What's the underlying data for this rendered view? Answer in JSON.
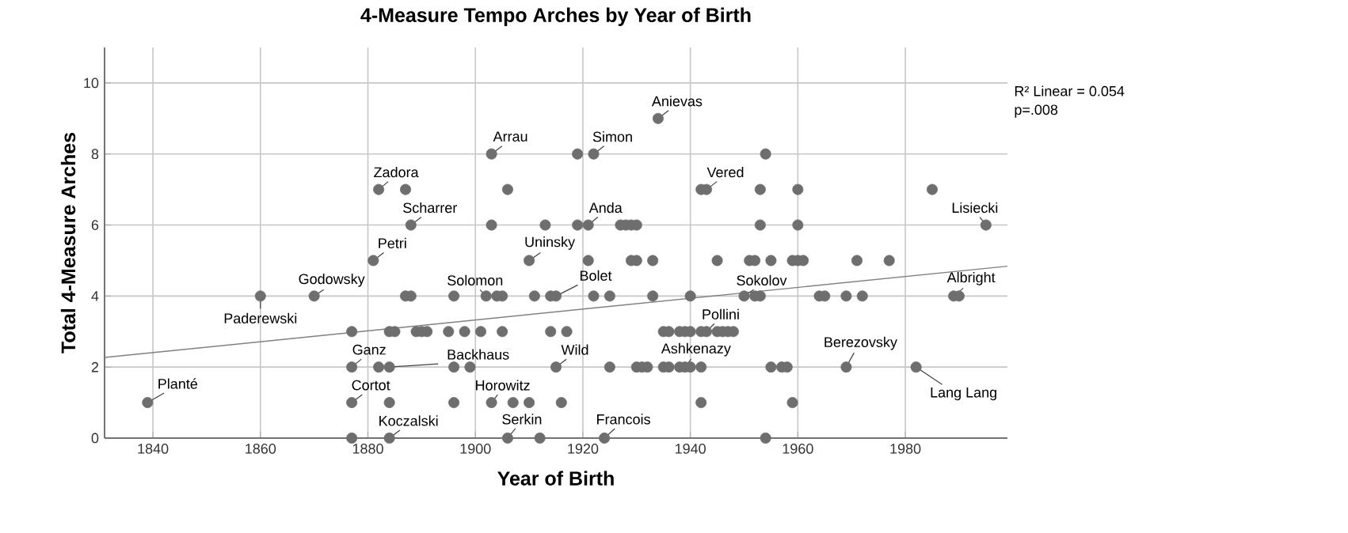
{
  "chart_data": {
    "type": "scatter",
    "title": "4-Measure Tempo Arches by Year of Birth",
    "xlabel": "Year of Birth",
    "ylabel": "Total 4-Measure Arches",
    "xlim": [
      1831,
      1999
    ],
    "ylim": [
      0,
      11
    ],
    "xticks": [
      1840,
      1860,
      1880,
      1900,
      1920,
      1940,
      1960,
      1980
    ],
    "yticks": [
      0,
      2,
      4,
      6,
      8,
      10
    ],
    "grid": true,
    "marker": "circle",
    "series": [
      {
        "color": "#6e6e6e",
        "x": [
          1934,
          1903,
          1919,
          1922,
          1954,
          1882,
          1887,
          1906,
          1942,
          1943,
          1953,
          1960,
          1985,
          1888,
          1903,
          1913,
          1919,
          1921,
          1927,
          1928,
          1929,
          1930,
          1953,
          1960,
          1995,
          1881,
          1910,
          1921,
          1929,
          1930,
          1933,
          1945,
          1951,
          1952,
          1955,
          1959,
          1960,
          1961,
          1971,
          1977,
          1860,
          1870,
          1887,
          1888,
          1896,
          1902,
          1904,
          1905,
          1911,
          1914,
          1915,
          1922,
          1925,
          1933,
          1940,
          1950,
          1952,
          1953,
          1964,
          1965,
          1969,
          1972,
          1989,
          1990,
          1877,
          1884,
          1885,
          1889,
          1890,
          1891,
          1895,
          1898,
          1901,
          1905,
          1914,
          1917,
          1935,
          1936,
          1938,
          1939,
          1940,
          1942,
          1943,
          1945,
          1946,
          1947,
          1948,
          1877,
          1882,
          1884,
          1896,
          1899,
          1915,
          1925,
          1930,
          1931,
          1932,
          1935,
          1936,
          1938,
          1939,
          1940,
          1942,
          1955,
          1957,
          1958,
          1969,
          1982,
          1839,
          1877,
          1884,
          1896,
          1903,
          1907,
          1910,
          1916,
          1942,
          1959,
          1877,
          1884,
          1906,
          1912,
          1924,
          1954
        ],
        "values": [
          9,
          8,
          8,
          8,
          8,
          7,
          7,
          7,
          7,
          7,
          7,
          7,
          7,
          6,
          6,
          6,
          6,
          6,
          6,
          6,
          6,
          6,
          6,
          6,
          6,
          5,
          5,
          5,
          5,
          5,
          5,
          5,
          5,
          5,
          5,
          5,
          5,
          5,
          5,
          5,
          4,
          4,
          4,
          4,
          4,
          4,
          4,
          4,
          4,
          4,
          4,
          4,
          4,
          4,
          4,
          4,
          4,
          4,
          4,
          4,
          4,
          4,
          4,
          4,
          3,
          3,
          3,
          3,
          3,
          3,
          3,
          3,
          3,
          3,
          3,
          3,
          3,
          3,
          3,
          3,
          3,
          3,
          3,
          3,
          3,
          3,
          3,
          2,
          2,
          2,
          2,
          2,
          2,
          2,
          2,
          2,
          2,
          2,
          2,
          2,
          2,
          2,
          2,
          2,
          2,
          2,
          2,
          2,
          1,
          1,
          1,
          1,
          1,
          1,
          1,
          1,
          1,
          1,
          0,
          0,
          0,
          0,
          0,
          0
        ]
      },
      {
        "type": "line",
        "color": "#808080",
        "line_style": "solid",
        "marker": "none",
        "x": [
          1831,
          1999
        ],
        "values": [
          2.27,
          4.84
        ]
      }
    ],
    "annotations": [
      {
        "text": "Planté",
        "x": 1839,
        "y": 1
      },
      {
        "text": "Paderewski",
        "x": 1860,
        "y": 4
      },
      {
        "text": "Godowsky",
        "x": 1870,
        "y": 4
      },
      {
        "text": "Petri",
        "x": 1881,
        "y": 5
      },
      {
        "text": "Zadora",
        "x": 1882,
        "y": 7
      },
      {
        "text": "Scharrer",
        "x": 1888,
        "y": 6
      },
      {
        "text": "Arrau",
        "x": 1903,
        "y": 8
      },
      {
        "text": "Solomon",
        "x": 1902,
        "y": 4
      },
      {
        "text": "Uninsky",
        "x": 1910,
        "y": 5
      },
      {
        "text": "Ganz",
        "x": 1877,
        "y": 2
      },
      {
        "text": "Backhaus",
        "x": 1884,
        "y": 2
      },
      {
        "text": "Cortot",
        "x": 1877,
        "y": 1
      },
      {
        "text": "Horowitz",
        "x": 1903,
        "y": 1
      },
      {
        "text": "Koczalski",
        "x": 1884,
        "y": 0
      },
      {
        "text": "Serkin",
        "x": 1906,
        "y": 0
      },
      {
        "text": "Anievas",
        "x": 1934,
        "y": 9
      },
      {
        "text": "Simon",
        "x": 1922,
        "y": 8
      },
      {
        "text": "Anda",
        "x": 1921,
        "y": 6
      },
      {
        "text": "Bolet",
        "x": 1915,
        "y": 4
      },
      {
        "text": "Wild",
        "x": 1915,
        "y": 2
      },
      {
        "text": "Francois",
        "x": 1924,
        "y": 0
      },
      {
        "text": "Vered",
        "x": 1943,
        "y": 7
      },
      {
        "text": "Pollini",
        "x": 1943,
        "y": 3
      },
      {
        "text": "Ashkenazy",
        "x": 1939,
        "y": 2
      },
      {
        "text": "Sokolov",
        "x": 1950,
        "y": 4
      },
      {
        "text": "Berezovsky",
        "x": 1969,
        "y": 2
      },
      {
        "text": "Lang Lang",
        "x": 1982,
        "y": 2
      },
      {
        "text": "Lisiecki",
        "x": 1995,
        "y": 6
      },
      {
        "text": "Albright",
        "x": 1989,
        "y": 4
      },
      "R² Linear = 0.054",
      "p=.008"
    ]
  }
}
